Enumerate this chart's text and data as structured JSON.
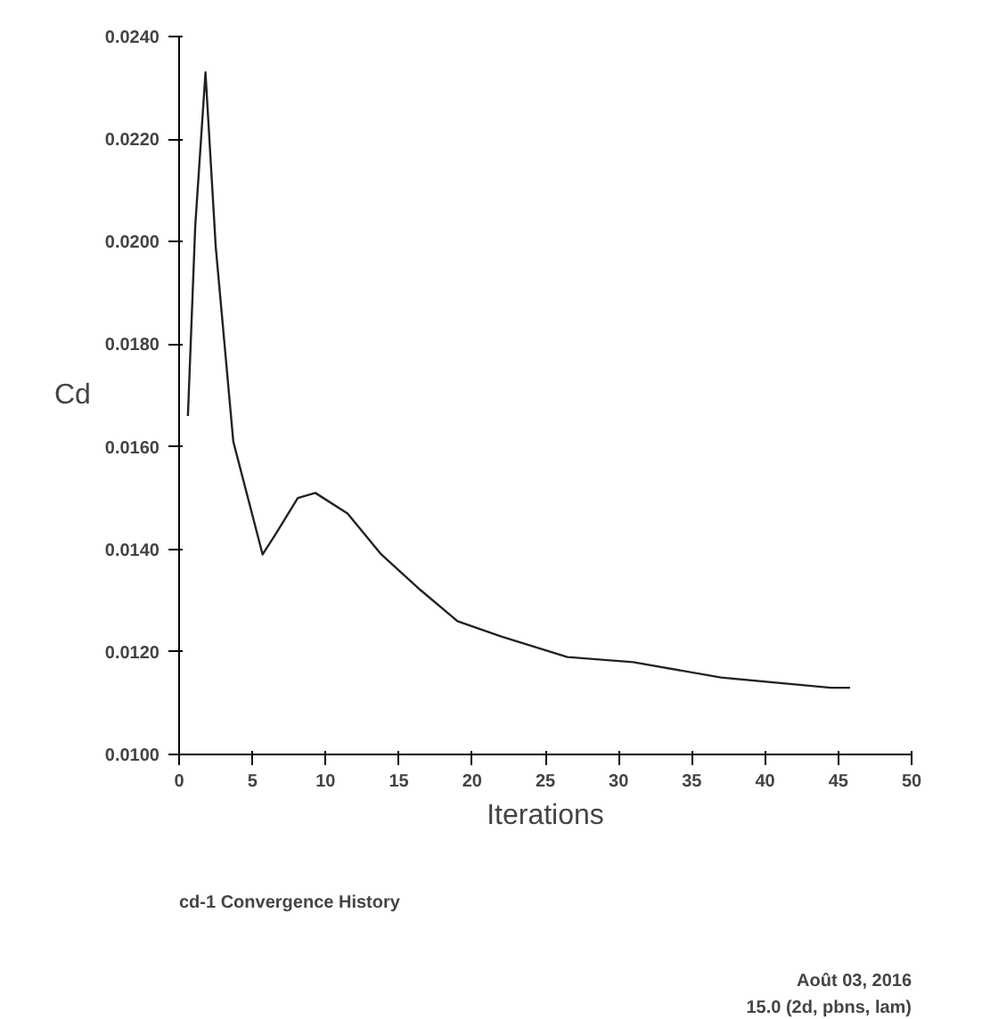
{
  "chart_data": {
    "type": "line",
    "xlabel": "Iterations",
    "ylabel": "Cd",
    "x": [
      0.6,
      1.1,
      1.8,
      2.5,
      3.7,
      5.7,
      6.6,
      8.1,
      9.3,
      11.5,
      13.8,
      16.5,
      19,
      22,
      26.5,
      31,
      37,
      44.5,
      45.8
    ],
    "series": [
      {
        "color": "#222222",
        "values": [
          0.0166,
          0.0203,
          0.0233,
          0.0199,
          0.0161,
          0.0139,
          0.0143,
          0.015,
          0.0151,
          0.0147,
          0.0139,
          0.0132,
          0.0126,
          0.0123,
          0.0119,
          0.0118,
          0.0115,
          0.0113,
          0.0113
        ]
      }
    ],
    "xlim": [
      0,
      50
    ],
    "xticks": [
      0,
      5,
      10,
      15,
      20,
      25,
      30,
      35,
      40,
      45,
      50
    ],
    "ylim": [
      0.01,
      0.024
    ],
    "yticks": [
      {
        "value": 0.01,
        "label": "0.0100"
      },
      {
        "value": 0.012,
        "label": "0.0120"
      },
      {
        "value": 0.014,
        "label": "0.0140"
      },
      {
        "value": 0.016,
        "label": "0.0160"
      },
      {
        "value": 0.018,
        "label": "0.0180"
      },
      {
        "value": 0.02,
        "label": "0.0200"
      },
      {
        "value": 0.022,
        "label": "0.0220"
      },
      {
        "value": 0.024,
        "label": "0.0240"
      }
    ],
    "grid": false,
    "marker": "none",
    "line_style": "solid",
    "annotations": [
      "cd-1 Convergence History",
      "Août 03, 2016",
      "15.0 (2d, pbns, lam)"
    ]
  }
}
